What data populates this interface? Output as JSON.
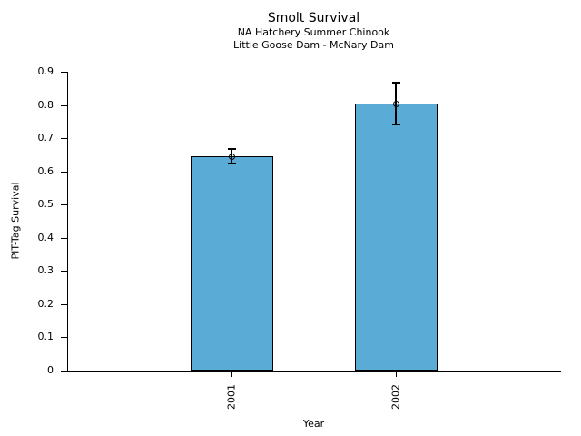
{
  "chart_data": {
    "type": "bar",
    "title": "Smolt Survival",
    "subtitles": [
      "NA Hatchery Summer Chinook",
      "Little Goose Dam - McNary Dam"
    ],
    "categories": [
      "2001",
      "2002"
    ],
    "values": [
      0.645,
      0.805
    ],
    "yerr": [
      0.022,
      0.063
    ],
    "xlabel": "Year",
    "ylabel": "PIT-Tag Survival",
    "ylim": [
      0,
      0.9
    ],
    "yticks": [
      0,
      0.1,
      0.2,
      0.3,
      0.4,
      0.5,
      0.6,
      0.7,
      0.8,
      0.9
    ],
    "bar_fill_color": "#5AACD6",
    "bar_edge_color": "#000000",
    "error_bar_color": "#000000",
    "marker": "open-circle",
    "grid": false,
    "legend_position": "none"
  }
}
